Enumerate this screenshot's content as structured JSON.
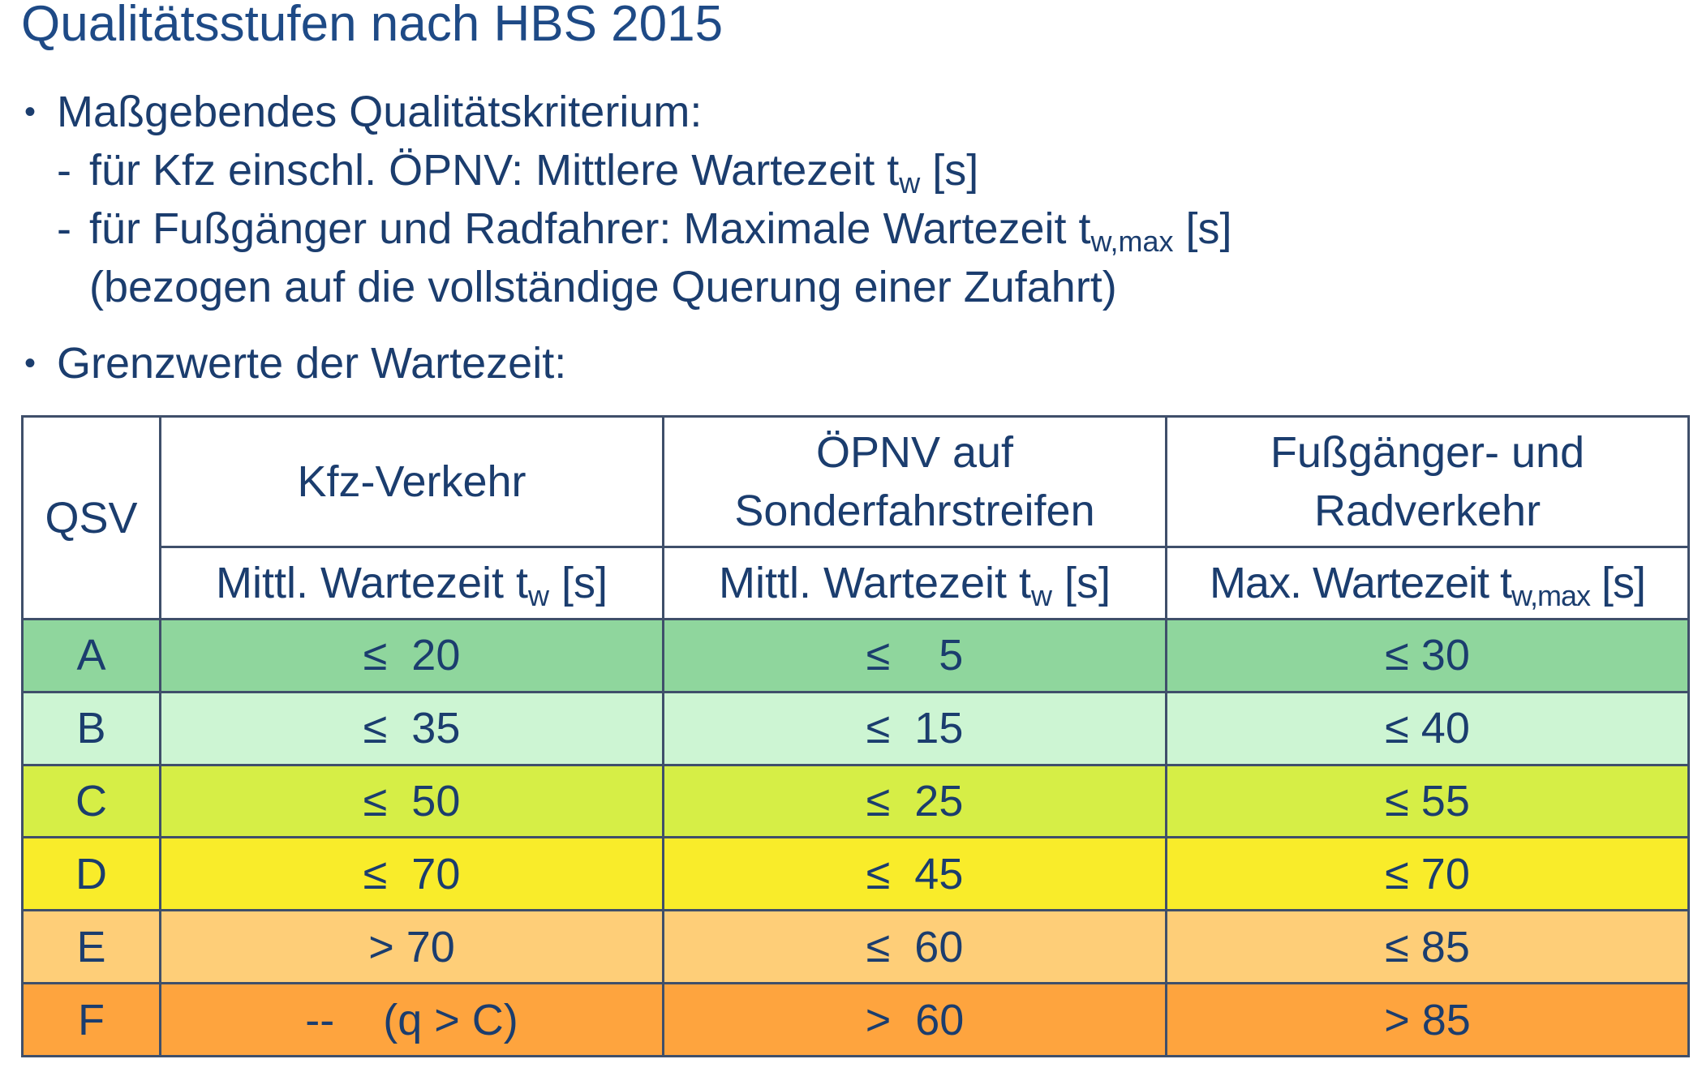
{
  "title": "Qualitätsstufen nach HBS 2015",
  "bullets": {
    "b1": "Maßgebendes Qualitätskriterium:",
    "b1_sub1_text": "für Kfz einschl. ÖPNV: Mittlere Wartezeit t",
    "b1_sub1_subscript": "w",
    "b1_sub1_unit": " [s]",
    "b1_sub2_text": "für Fußgänger und Radfahrer: Maximale Wartezeit t",
    "b1_sub2_subscript": "w,max",
    "b1_sub2_unit": " [s]",
    "b1_sub2_cont": "(bezogen auf die vollständige Querung einer Zufahrt)",
    "b2": "Grenzwerte der Wartezeit:"
  },
  "table": {
    "qsv_header": "QSV",
    "groups": [
      {
        "line1": "Kfz-Verkehr",
        "line2": ""
      },
      {
        "line1": "ÖPNV auf",
        "line2": "Sonderfahrstreifen"
      },
      {
        "line1": "Fußgänger- und",
        "line2": "Radverkehr"
      }
    ],
    "sub_headers": [
      {
        "text": "Mittl. Wartezeit t",
        "subscript": "w",
        "unit": " [s]"
      },
      {
        "text": "Mittl. Wartezeit t",
        "subscript": "w",
        "unit": " [s]"
      },
      {
        "text": "Max. Wartezeit t",
        "subscript": "w,max",
        "unit": " [s]"
      }
    ],
    "rows": [
      {
        "qsv": "A",
        "kfz": "≤  20",
        "opnv": "≤    5",
        "fuss": "≤ 30",
        "color": "#8fd69d"
      },
      {
        "qsv": "B",
        "kfz": "≤  35",
        "opnv": "≤  15",
        "fuss": "≤ 40",
        "color": "#cdf5d3"
      },
      {
        "qsv": "C",
        "kfz": "≤  50",
        "opnv": "≤  25",
        "fuss": "≤ 55",
        "color": "#d6ee46"
      },
      {
        "qsv": "D",
        "kfz": "≤  70",
        "opnv": "≤  45",
        "fuss": "≤ 70",
        "color": "#f9ec2a"
      },
      {
        "qsv": "E",
        "kfz": "> 70",
        "opnv": "≤  60",
        "fuss": "≤ 85",
        "color": "#fece78"
      },
      {
        "qsv": "F",
        "kfz": "--    (q > C)",
        "opnv": ">  60",
        "fuss": "> 85",
        "color": "#fea43e"
      }
    ]
  }
}
